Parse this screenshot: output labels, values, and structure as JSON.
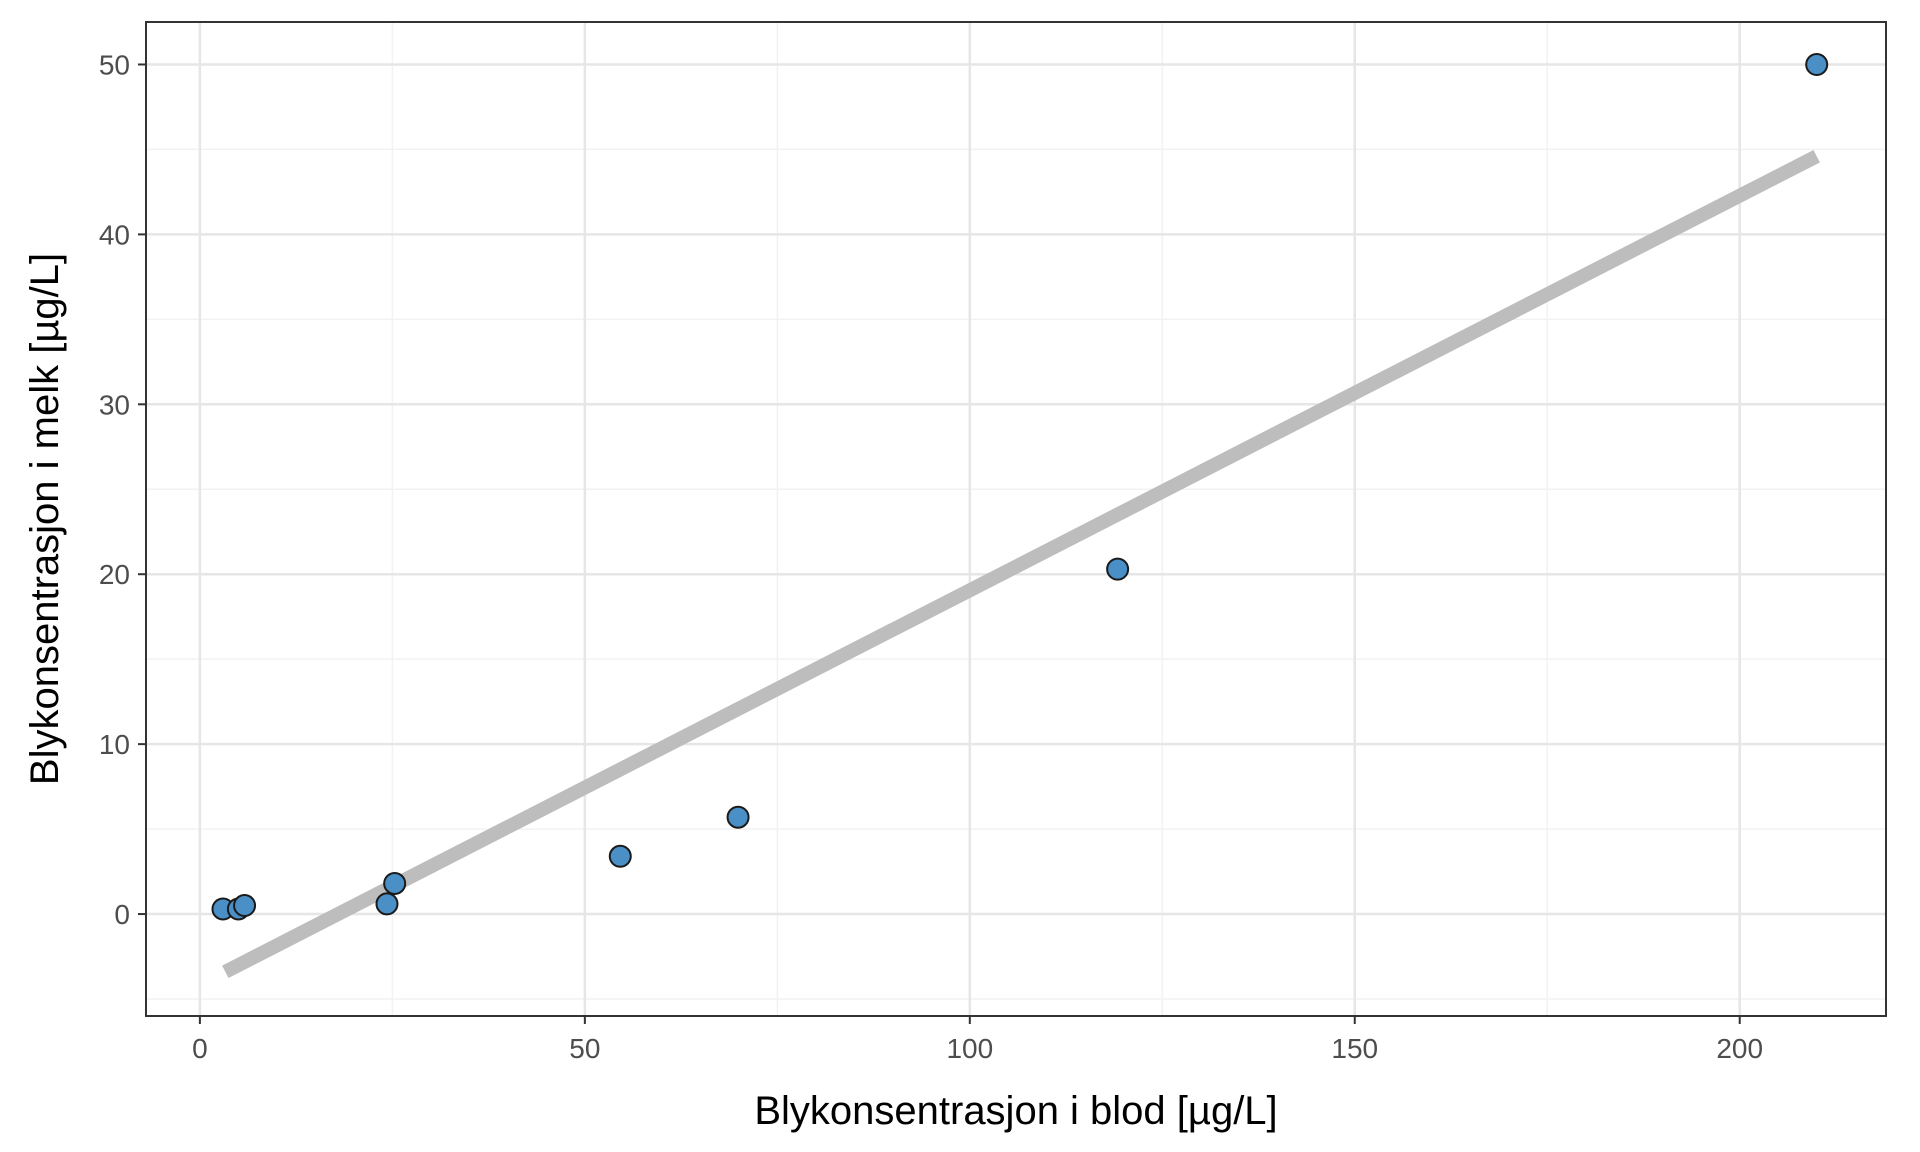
{
  "chart_data": {
    "type": "scatter",
    "title": "",
    "xlabel": "Blykonsentrasjon i blod [µg/L]",
    "ylabel": "Blykonsentrasjon i melk [µg/L]",
    "xlim": [
      -7,
      219
    ],
    "ylim": [
      -6,
      52.5
    ],
    "x_ticks": [
      0,
      50,
      100,
      150,
      200
    ],
    "x_tick_labels": [
      "0",
      "50",
      "100",
      "150",
      "200"
    ],
    "y_ticks": [
      0,
      10,
      20,
      30,
      40,
      50
    ],
    "y_tick_labels": [
      "0",
      "10",
      "20",
      "30",
      "40",
      "50"
    ],
    "x_minor_ticks": [
      25,
      75,
      125,
      175
    ],
    "y_minor_ticks": [
      -5,
      5,
      15,
      25,
      35,
      45
    ],
    "grid": true,
    "points": [
      {
        "x": 3,
        "y": 0.3
      },
      {
        "x": 5,
        "y": 0.3
      },
      {
        "x": 5.8,
        "y": 0.5
      },
      {
        "x": 24.3,
        "y": 0.6
      },
      {
        "x": 25.3,
        "y": 1.8
      },
      {
        "x": 54.6,
        "y": 3.4
      },
      {
        "x": 69.9,
        "y": 5.7
      },
      {
        "x": 119.2,
        "y": 20.3
      },
      {
        "x": 210,
        "y": 50
      }
    ],
    "fit_line": {
      "x": [
        3.3,
        210
      ],
      "y": [
        -3.4,
        44.6
      ]
    },
    "colors": {
      "point_fill": "#4a8fc5",
      "point_stroke": "#1a1a1a",
      "fit_line": "#bdbdbd",
      "grid_major": "#e6e6e6",
      "grid_minor": "#f2f2f2",
      "panel_border": "#333333"
    }
  }
}
